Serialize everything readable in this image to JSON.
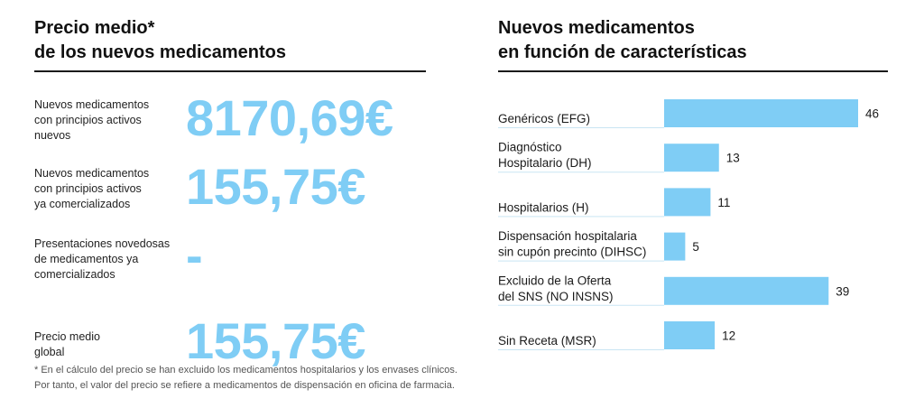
{
  "left": {
    "title_line1": "Precio medio*",
    "title_line2": "de los nuevos medicamentos",
    "prices": [
      {
        "label_lines": [
          "Nuevos medicamentos",
          "con principios activos",
          "nuevos"
        ],
        "value": "8170,69€"
      },
      {
        "label_lines": [
          "Nuevos medicamentos",
          "con principios activos",
          "ya comercializados"
        ],
        "value": "155,75€"
      },
      {
        "label_lines": [
          "Presentaciones novedosas",
          "de medicamentos ya",
          "comercializados"
        ],
        "value": "-"
      },
      {
        "label_lines": [
          "Precio medio",
          "global"
        ],
        "value": "155,75€"
      }
    ],
    "footnote_line1": "* En el cálculo del precio se han excluido los medicamentos hospitalarios y los envases clínicos.",
    "footnote_line2": "Por tanto, el valor del precio se refiere a medicamentos de dispensación en oficina de farmacia."
  },
  "right": {
    "title_line1": "Nuevos medicamentos",
    "title_line2": "en función de características"
  },
  "colors": {
    "accent": "#7fcdf5",
    "text": "#1a1a1a",
    "separator": "#c9e5f3"
  },
  "chart_data": {
    "type": "bar",
    "orientation": "horizontal",
    "title": "Nuevos medicamentos en función de características",
    "categories": [
      [
        "Genéricos (EFG)"
      ],
      [
        "Diagnóstico",
        "Hospitalario (DH)"
      ],
      [
        "Hospitalarios (H)"
      ],
      [
        "Dispensación hospitalaria",
        "sin cupón precinto (DIHSC)"
      ],
      [
        "Excluido de la Oferta",
        "del SNS (NO INSNS)"
      ],
      [
        "Sin Receta (MSR)"
      ]
    ],
    "values": [
      46,
      13,
      11,
      5,
      39,
      12
    ],
    "xlim": [
      0,
      46
    ]
  }
}
